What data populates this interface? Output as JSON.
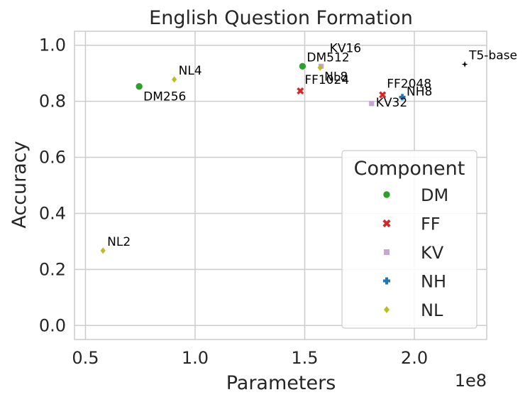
{
  "chart_data": {
    "type": "scatter",
    "title": "English Question Formation",
    "xlabel": "Parameters",
    "ylabel": "Accuracy",
    "x_offset_label": "1e8",
    "xlim": [
      0.45,
      2.33
    ],
    "ylim": [
      -0.05,
      1.05
    ],
    "xticks": [
      0.5,
      1.0,
      1.5,
      2.0
    ],
    "xtick_labels": [
      "0.5",
      "1.0",
      "1.5",
      "2.0"
    ],
    "yticks": [
      0.0,
      0.2,
      0.4,
      0.6,
      0.8,
      1.0
    ],
    "ytick_labels": [
      "0.0",
      "0.2",
      "0.4",
      "0.6",
      "0.8",
      "1.0"
    ],
    "grid": true,
    "legend": {
      "title": "Component",
      "placement": "lower-right",
      "entries": [
        {
          "name": "DM",
          "marker": "circle",
          "color": "#2ca02c"
        },
        {
          "name": "FF",
          "marker": "x",
          "color": "#d62728"
        },
        {
          "name": "KV",
          "marker": "square",
          "color": "#c5a6d6"
        },
        {
          "name": "NH",
          "marker": "plus",
          "color": "#1f77b4"
        },
        {
          "name": "NL",
          "marker": "diamond",
          "color": "#bcbd22"
        }
      ]
    },
    "points": [
      {
        "label": "DM256",
        "component": "DM",
        "x": 0.745,
        "y": 0.853
      },
      {
        "label": "DM512",
        "component": "DM",
        "x": 1.49,
        "y": 0.925
      },
      {
        "label": "FF1024",
        "component": "FF",
        "x": 1.48,
        "y": 0.837
      },
      {
        "label": "FF2048",
        "component": "FF",
        "x": 1.855,
        "y": 0.823
      },
      {
        "label": "KV16",
        "component": "KV",
        "x": 1.575,
        "y": 0.925
      },
      {
        "label": "KV32",
        "component": "KV",
        "x": 1.805,
        "y": 0.792
      },
      {
        "label": "NH8",
        "component": "NH",
        "x": 1.945,
        "y": 0.815
      },
      {
        "label": "T5-base",
        "component": "T5",
        "x": 2.23,
        "y": 0.932
      },
      {
        "label": "NL2",
        "component": "NL",
        "x": 0.58,
        "y": 0.267
      },
      {
        "label": "NL4",
        "component": "NL",
        "x": 0.905,
        "y": 0.878
      },
      {
        "label": "NL8",
        "component": "NL",
        "x": 1.57,
        "y": 0.92
      }
    ],
    "t5_color": "#000000"
  }
}
